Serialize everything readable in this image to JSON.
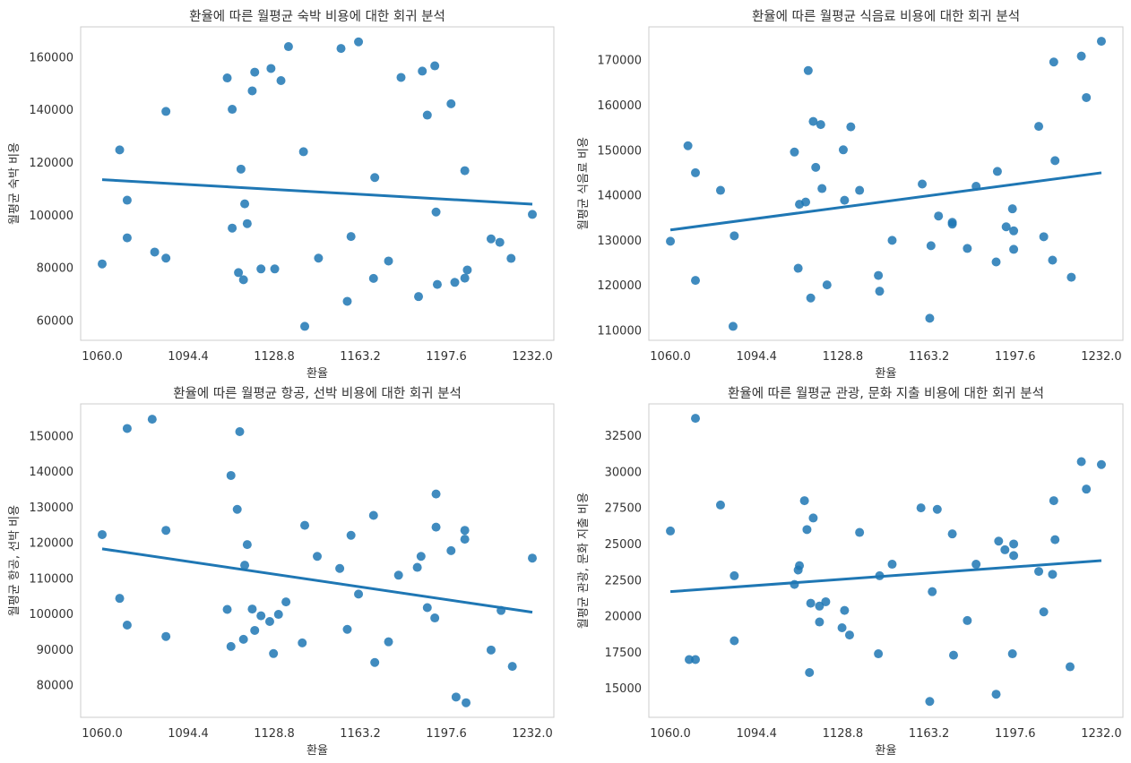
{
  "chart_data": [
    {
      "type": "scatter",
      "title": "환율에 따른 월평균 숙박 비용에 대한 회귀 분석",
      "xlabel": "환율",
      "ylabel": "월평균 숙박 비용",
      "xlim": [
        1051.4,
        1240.6
      ],
      "ylim": [
        52500,
        171500
      ],
      "xticks": [
        1060.0,
        1094.4,
        1128.8,
        1163.2,
        1197.6,
        1232.0
      ],
      "xtick_labels": [
        "1060.0",
        "1094.4",
        "1128.8",
        "1163.2",
        "1197.6",
        "1232.0"
      ],
      "yticks": [
        60000,
        80000,
        100000,
        120000,
        140000,
        160000
      ],
      "ytick_labels": [
        "60000",
        "80000",
        "100000",
        "120000",
        "140000",
        "160000"
      ],
      "grid": false,
      "regression_line": {
        "x": [
          1060.0,
          1232.0
        ],
        "y": [
          113500,
          104200
        ]
      },
      "color": "#1f77b4",
      "points": [
        {
          "x": 1060.0,
          "y": 81500
        },
        {
          "x": 1067.0,
          "y": 124800
        },
        {
          "x": 1070.0,
          "y": 105700
        },
        {
          "x": 1070.0,
          "y": 91400
        },
        {
          "x": 1081.0,
          "y": 86000
        },
        {
          "x": 1085.5,
          "y": 83700
        },
        {
          "x": 1085.5,
          "y": 139400
        },
        {
          "x": 1110.0,
          "y": 152100
        },
        {
          "x": 1112.0,
          "y": 140200
        },
        {
          "x": 1112.0,
          "y": 95100
        },
        {
          "x": 1114.5,
          "y": 78200
        },
        {
          "x": 1115.5,
          "y": 117500
        },
        {
          "x": 1116.5,
          "y": 75500
        },
        {
          "x": 1117.0,
          "y": 104300
        },
        {
          "x": 1118.0,
          "y": 96800
        },
        {
          "x": 1120.0,
          "y": 147200
        },
        {
          "x": 1121.0,
          "y": 154300
        },
        {
          "x": 1123.5,
          "y": 79600
        },
        {
          "x": 1127.5,
          "y": 155700
        },
        {
          "x": 1129.0,
          "y": 79600
        },
        {
          "x": 1131.5,
          "y": 151100
        },
        {
          "x": 1134.5,
          "y": 164000
        },
        {
          "x": 1140.5,
          "y": 124100
        },
        {
          "x": 1141.0,
          "y": 57800
        },
        {
          "x": 1146.5,
          "y": 83700
        },
        {
          "x": 1155.5,
          "y": 163300
        },
        {
          "x": 1158.0,
          "y": 67300
        },
        {
          "x": 1159.5,
          "y": 91900
        },
        {
          "x": 1162.5,
          "y": 165800
        },
        {
          "x": 1168.5,
          "y": 76000
        },
        {
          "x": 1169.0,
          "y": 114300
        },
        {
          "x": 1174.5,
          "y": 82600
        },
        {
          "x": 1179.5,
          "y": 152300
        },
        {
          "x": 1186.5,
          "y": 69100
        },
        {
          "x": 1188.0,
          "y": 154700
        },
        {
          "x": 1190.0,
          "y": 138000
        },
        {
          "x": 1193.0,
          "y": 156700
        },
        {
          "x": 1193.5,
          "y": 101200
        },
        {
          "x": 1194.0,
          "y": 73700
        },
        {
          "x": 1199.5,
          "y": 142300
        },
        {
          "x": 1201.0,
          "y": 74500
        },
        {
          "x": 1205.0,
          "y": 76100
        },
        {
          "x": 1205.0,
          "y": 116900
        },
        {
          "x": 1206.0,
          "y": 79200
        },
        {
          "x": 1215.5,
          "y": 91000
        },
        {
          "x": 1219.0,
          "y": 89700
        },
        {
          "x": 1223.5,
          "y": 83600
        },
        {
          "x": 1232.0,
          "y": 100300
        }
      ]
    },
    {
      "type": "scatter",
      "title": "환율에 따른 월평균 식음료 비용에 대한 회귀 분석",
      "xlabel": "환율",
      "ylabel": "월평균 식음료 비용",
      "xlim": [
        1051.4,
        1240.6
      ],
      "ylim": [
        107800,
        177400
      ],
      "xticks": [
        1060.0,
        1094.4,
        1128.8,
        1163.2,
        1197.6,
        1232.0
      ],
      "xtick_labels": [
        "1060.0",
        "1094.4",
        "1128.8",
        "1163.2",
        "1197.6",
        "1232.0"
      ],
      "yticks": [
        110000,
        120000,
        130000,
        140000,
        150000,
        160000,
        170000
      ],
      "ytick_labels": [
        "110000",
        "120000",
        "130000",
        "140000",
        "150000",
        "160000",
        "170000"
      ],
      "grid": false,
      "regression_line": {
        "x": [
          1060.0,
          1232.0
        ],
        "y": [
          132300,
          145000
        ]
      },
      "color": "#1f77b4",
      "points": [
        {
          "x": 1060.0,
          "y": 129800
        },
        {
          "x": 1067.0,
          "y": 151000
        },
        {
          "x": 1070.0,
          "y": 145000
        },
        {
          "x": 1070.0,
          "y": 121100
        },
        {
          "x": 1080.0,
          "y": 141100
        },
        {
          "x": 1085.5,
          "y": 131000
        },
        {
          "x": 1085.0,
          "y": 110900
        },
        {
          "x": 1109.5,
          "y": 149600
        },
        {
          "x": 1111.0,
          "y": 123800
        },
        {
          "x": 1111.5,
          "y": 138000
        },
        {
          "x": 1114.0,
          "y": 138500
        },
        {
          "x": 1115.0,
          "y": 167700
        },
        {
          "x": 1116.0,
          "y": 117200
        },
        {
          "x": 1117.0,
          "y": 156400
        },
        {
          "x": 1118.0,
          "y": 146200
        },
        {
          "x": 1120.0,
          "y": 155700
        },
        {
          "x": 1120.5,
          "y": 141500
        },
        {
          "x": 1122.5,
          "y": 120100
        },
        {
          "x": 1129.0,
          "y": 150100
        },
        {
          "x": 1129.5,
          "y": 138900
        },
        {
          "x": 1132.0,
          "y": 155200
        },
        {
          "x": 1135.5,
          "y": 141100
        },
        {
          "x": 1143.0,
          "y": 122200
        },
        {
          "x": 1143.5,
          "y": 118700
        },
        {
          "x": 1148.5,
          "y": 130000
        },
        {
          "x": 1160.5,
          "y": 142500
        },
        {
          "x": 1163.5,
          "y": 112700
        },
        {
          "x": 1164.0,
          "y": 128800
        },
        {
          "x": 1167.0,
          "y": 135400
        },
        {
          "x": 1172.5,
          "y": 134000
        },
        {
          "x": 1172.5,
          "y": 133600
        },
        {
          "x": 1178.5,
          "y": 128200
        },
        {
          "x": 1182.0,
          "y": 142000
        },
        {
          "x": 1190.0,
          "y": 125200
        },
        {
          "x": 1190.5,
          "y": 145300
        },
        {
          "x": 1194.0,
          "y": 133000
        },
        {
          "x": 1196.5,
          "y": 137000
        },
        {
          "x": 1197.0,
          "y": 132100
        },
        {
          "x": 1197.0,
          "y": 128000
        },
        {
          "x": 1207.0,
          "y": 155300
        },
        {
          "x": 1209.0,
          "y": 130800
        },
        {
          "x": 1212.5,
          "y": 125600
        },
        {
          "x": 1213.0,
          "y": 169600
        },
        {
          "x": 1213.5,
          "y": 147700
        },
        {
          "x": 1220.0,
          "y": 121800
        },
        {
          "x": 1224.0,
          "y": 170900
        },
        {
          "x": 1226.0,
          "y": 161700
        },
        {
          "x": 1232.0,
          "y": 174200
        }
      ]
    },
    {
      "type": "scatter",
      "title": "환율에 따른 월평균 항공, 선박 비용에 대한 회귀 분석",
      "xlabel": "환율",
      "ylabel": "월평균 항공, 선박 비용",
      "xlim": [
        1051.4,
        1240.6
      ],
      "ylim": [
        71000,
        159000
      ],
      "xticks": [
        1060.0,
        1094.4,
        1128.8,
        1163.2,
        1197.6,
        1232.0
      ],
      "xtick_labels": [
        "1060.0",
        "1094.4",
        "1128.8",
        "1163.2",
        "1197.6",
        "1232.0"
      ],
      "yticks": [
        80000,
        90000,
        100000,
        110000,
        120000,
        130000,
        140000,
        150000
      ],
      "ytick_labels": [
        "80000",
        "90000",
        "100000",
        "110000",
        "120000",
        "130000",
        "140000",
        "150000"
      ],
      "grid": false,
      "regression_line": {
        "x": [
          1060.0,
          1232.0
        ],
        "y": [
          118300,
          100500
        ]
      },
      "color": "#1f77b4",
      "points": [
        {
          "x": 1060.0,
          "y": 122300
        },
        {
          "x": 1067.0,
          "y": 104400
        },
        {
          "x": 1070.0,
          "y": 152100
        },
        {
          "x": 1070.0,
          "y": 96900
        },
        {
          "x": 1080.0,
          "y": 154700
        },
        {
          "x": 1085.5,
          "y": 123500
        },
        {
          "x": 1085.5,
          "y": 93700
        },
        {
          "x": 1110.0,
          "y": 101300
        },
        {
          "x": 1111.5,
          "y": 138900
        },
        {
          "x": 1111.5,
          "y": 90900
        },
        {
          "x": 1114.0,
          "y": 129400
        },
        {
          "x": 1115.0,
          "y": 151200
        },
        {
          "x": 1116.5,
          "y": 92900
        },
        {
          "x": 1117.0,
          "y": 113700
        },
        {
          "x": 1118.0,
          "y": 119500
        },
        {
          "x": 1120.0,
          "y": 101400
        },
        {
          "x": 1121.0,
          "y": 95400
        },
        {
          "x": 1123.5,
          "y": 99500
        },
        {
          "x": 1127.0,
          "y": 97900
        },
        {
          "x": 1128.5,
          "y": 88900
        },
        {
          "x": 1130.5,
          "y": 99900
        },
        {
          "x": 1133.5,
          "y": 103400
        },
        {
          "x": 1140.0,
          "y": 91900
        },
        {
          "x": 1141.0,
          "y": 124900
        },
        {
          "x": 1146.0,
          "y": 116200
        },
        {
          "x": 1155.0,
          "y": 112800
        },
        {
          "x": 1158.0,
          "y": 95700
        },
        {
          "x": 1159.5,
          "y": 122100
        },
        {
          "x": 1162.5,
          "y": 105600
        },
        {
          "x": 1168.5,
          "y": 127700
        },
        {
          "x": 1169.0,
          "y": 86400
        },
        {
          "x": 1174.5,
          "y": 92200
        },
        {
          "x": 1178.5,
          "y": 110900
        },
        {
          "x": 1186.0,
          "y": 113100
        },
        {
          "x": 1187.5,
          "y": 116200
        },
        {
          "x": 1190.0,
          "y": 101800
        },
        {
          "x": 1193.0,
          "y": 98900
        },
        {
          "x": 1193.5,
          "y": 124400
        },
        {
          "x": 1193.5,
          "y": 133700
        },
        {
          "x": 1199.5,
          "y": 117800
        },
        {
          "x": 1201.5,
          "y": 76700
        },
        {
          "x": 1205.0,
          "y": 121000
        },
        {
          "x": 1205.0,
          "y": 123500
        },
        {
          "x": 1205.5,
          "y": 75100
        },
        {
          "x": 1215.5,
          "y": 89900
        },
        {
          "x": 1219.5,
          "y": 101000
        },
        {
          "x": 1224.0,
          "y": 85300
        },
        {
          "x": 1232.0,
          "y": 115700
        }
      ]
    },
    {
      "type": "scatter",
      "title": "환율에 따른 월평균 관광, 문화 지출 비용에 대한 회귀 분석",
      "xlabel": "환율",
      "ylabel": "월평균 관광, 문화 지출 비용",
      "xlim": [
        1051.4,
        1240.6
      ],
      "ylim": [
        13000,
        34700
      ],
      "xticks": [
        1060.0,
        1094.4,
        1128.8,
        1163.2,
        1197.6,
        1232.0
      ],
      "xtick_labels": [
        "1060.0",
        "1094.4",
        "1128.8",
        "1163.2",
        "1197.6",
        "1232.0"
      ],
      "yticks": [
        15000,
        17500,
        20000,
        22500,
        25000,
        27500,
        30000,
        32500
      ],
      "ytick_labels": [
        "15000",
        "17500",
        "20000",
        "22500",
        "25000",
        "27500",
        "30000",
        "32500"
      ],
      "grid": false,
      "regression_line": {
        "x": [
          1060.0,
          1232.0
        ],
        "y": [
          21700,
          23850
        ]
      },
      "color": "#1f77b4",
      "points": [
        {
          "x": 1060.0,
          "y": 25900
        },
        {
          "x": 1067.5,
          "y": 17000
        },
        {
          "x": 1070.0,
          "y": 33700
        },
        {
          "x": 1070.0,
          "y": 17000
        },
        {
          "x": 1080.0,
          "y": 27700
        },
        {
          "x": 1085.5,
          "y": 22800
        },
        {
          "x": 1085.5,
          "y": 18300
        },
        {
          "x": 1109.5,
          "y": 22200
        },
        {
          "x": 1111.0,
          "y": 23200
        },
        {
          "x": 1111.5,
          "y": 23500
        },
        {
          "x": 1113.5,
          "y": 28000
        },
        {
          "x": 1114.5,
          "y": 26000
        },
        {
          "x": 1115.5,
          "y": 16100
        },
        {
          "x": 1116.0,
          "y": 20900
        },
        {
          "x": 1117.0,
          "y": 26800
        },
        {
          "x": 1119.5,
          "y": 20700
        },
        {
          "x": 1119.5,
          "y": 19600
        },
        {
          "x": 1122.0,
          "y": 21000
        },
        {
          "x": 1128.5,
          "y": 19200
        },
        {
          "x": 1129.5,
          "y": 20400
        },
        {
          "x": 1131.5,
          "y": 18700
        },
        {
          "x": 1135.5,
          "y": 25800
        },
        {
          "x": 1143.0,
          "y": 17400
        },
        {
          "x": 1143.5,
          "y": 22800
        },
        {
          "x": 1148.5,
          "y": 23600
        },
        {
          "x": 1160.0,
          "y": 27500
        },
        {
          "x": 1163.5,
          "y": 14100
        },
        {
          "x": 1164.5,
          "y": 21700
        },
        {
          "x": 1166.5,
          "y": 27400
        },
        {
          "x": 1172.5,
          "y": 25700
        },
        {
          "x": 1173.0,
          "y": 17300
        },
        {
          "x": 1178.5,
          "y": 19700
        },
        {
          "x": 1182.0,
          "y": 23600
        },
        {
          "x": 1190.0,
          "y": 14600
        },
        {
          "x": 1191.0,
          "y": 25200
        },
        {
          "x": 1193.5,
          "y": 24600
        },
        {
          "x": 1196.5,
          "y": 17400
        },
        {
          "x": 1197.0,
          "y": 25000
        },
        {
          "x": 1197.0,
          "y": 24200
        },
        {
          "x": 1207.0,
          "y": 23100
        },
        {
          "x": 1209.0,
          "y": 20300
        },
        {
          "x": 1212.5,
          "y": 22900
        },
        {
          "x": 1213.0,
          "y": 28000
        },
        {
          "x": 1213.5,
          "y": 25300
        },
        {
          "x": 1219.5,
          "y": 16500
        },
        {
          "x": 1224.0,
          "y": 30700
        },
        {
          "x": 1226.0,
          "y": 28800
        },
        {
          "x": 1232.0,
          "y": 30500
        }
      ]
    }
  ]
}
